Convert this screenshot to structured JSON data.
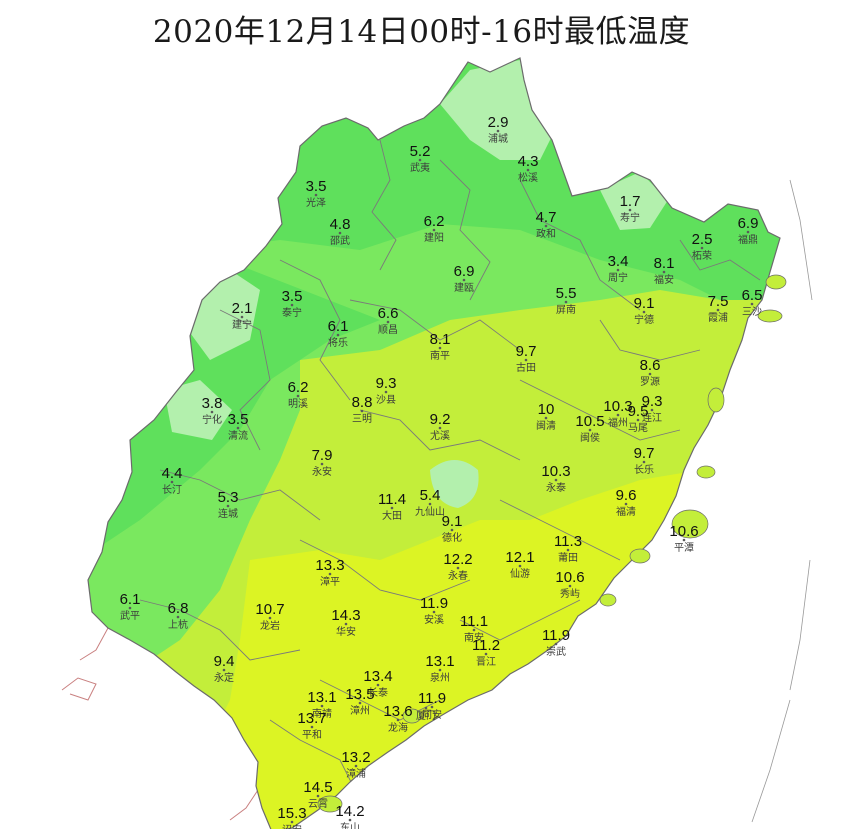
{
  "title": "2020年12月14日00时-16时最低温度",
  "colors": {
    "band_cold": "#b3f0ad",
    "band_cool": "#5fe05c",
    "band_mid": "#7ae85f",
    "band_warm": "#c3ee3a",
    "band_hot": "#dcf424",
    "county_line": "#7a7a7a",
    "province_border": "#c98080"
  },
  "stations": [
    {
      "name": "浦城",
      "value": "2.9"
    },
    {
      "name": "武夷",
      "value": "5.2"
    },
    {
      "name": "松溪",
      "value": "4.3"
    },
    {
      "name": "政和",
      "value": "4.7"
    },
    {
      "name": "光泽",
      "value": "3.5"
    },
    {
      "name": "邵武",
      "value": "4.8"
    },
    {
      "name": "建阳",
      "value": "6.2"
    },
    {
      "name": "建瓯",
      "value": "6.9"
    },
    {
      "name": "寿宁",
      "value": "1.7"
    },
    {
      "name": "福鼎",
      "value": "6.9"
    },
    {
      "name": "柘荣",
      "value": "2.5"
    },
    {
      "name": "周宁",
      "value": "3.4"
    },
    {
      "name": "福安",
      "value": "8.1"
    },
    {
      "name": "霞浦",
      "value": "7.5"
    },
    {
      "name": "三沙",
      "value": "6.5"
    },
    {
      "name": "屏南",
      "value": "5.5"
    },
    {
      "name": "泰宁",
      "value": "3.5"
    },
    {
      "name": "建宁",
      "value": "2.1"
    },
    {
      "name": "将乐",
      "value": "6.1"
    },
    {
      "name": "顺昌",
      "value": "6.6"
    },
    {
      "name": "南平",
      "value": "8.1"
    },
    {
      "name": "古田",
      "value": "9.7"
    },
    {
      "name": "宁德",
      "value": "9.1"
    },
    {
      "name": "罗源",
      "value": "8.6"
    },
    {
      "name": "连江",
      "value": "9.3"
    },
    {
      "name": "明溪",
      "value": "6.2"
    },
    {
      "name": "沙县",
      "value": "9.3"
    },
    {
      "name": "三明",
      "value": "8.8"
    },
    {
      "name": "宁化",
      "value": "3.8"
    },
    {
      "name": "清流",
      "value": "3.5"
    },
    {
      "name": "尤溪",
      "value": "9.2"
    },
    {
      "name": "闽清",
      "value": "10"
    },
    {
      "name": "闽侯",
      "value": "10.5"
    },
    {
      "name": "福州",
      "value": "10.3"
    },
    {
      "name": "马尾",
      "value": "9.5"
    },
    {
      "name": "长乐",
      "value": "9.7"
    },
    {
      "name": "长汀",
      "value": "4.4"
    },
    {
      "name": "永安",
      "value": "7.9"
    },
    {
      "name": "连城",
      "value": "5.3"
    },
    {
      "name": "大田",
      "value": "11.4"
    },
    {
      "name": "九仙山",
      "value": "5.4"
    },
    {
      "name": "永泰",
      "value": "10.3"
    },
    {
      "name": "福清",
      "value": "9.6"
    },
    {
      "name": "平潭",
      "value": "10.6"
    },
    {
      "name": "德化",
      "value": "9.1"
    },
    {
      "name": "永春",
      "value": "12.2"
    },
    {
      "name": "仙游",
      "value": "12.1"
    },
    {
      "name": "莆田",
      "value": "11.3"
    },
    {
      "name": "秀屿",
      "value": "10.6"
    },
    {
      "name": "武平",
      "value": "6.1"
    },
    {
      "name": "上杭",
      "value": "6.8"
    },
    {
      "name": "漳平",
      "value": "13.3"
    },
    {
      "name": "龙岩",
      "value": "10.7"
    },
    {
      "name": "华安",
      "value": "14.3"
    },
    {
      "name": "安溪",
      "value": "11.9"
    },
    {
      "name": "南安",
      "value": "11.1"
    },
    {
      "name": "晋江",
      "value": "11.2"
    },
    {
      "name": "崇武",
      "value": "11.9"
    },
    {
      "name": "永定",
      "value": "9.4"
    },
    {
      "name": "泉州",
      "value": "13.1"
    },
    {
      "name": "长泰",
      "value": "13.4"
    },
    {
      "name": "同安",
      "value": "11.9"
    },
    {
      "name": "南靖",
      "value": "13.1"
    },
    {
      "name": "漳州",
      "value": "13.5"
    },
    {
      "name": "龙海",
      "value": "13.6"
    },
    {
      "name": "平和",
      "value": "13.7"
    },
    {
      "name": "厦门",
      "value": ""
    },
    {
      "name": "漳浦",
      "value": "13.2"
    },
    {
      "name": "云霄",
      "value": "14.5"
    },
    {
      "name": "东山",
      "value": "14.2"
    },
    {
      "name": "诏安",
      "value": "15.3"
    }
  ]
}
